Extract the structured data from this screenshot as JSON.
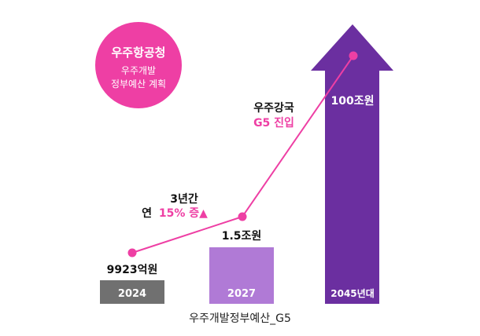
{
  "badge": {
    "title": "우주항공청",
    "line1": "우주개발",
    "line2": "정부예산 계획",
    "color": "#ee3fa4"
  },
  "annotations": {
    "growth_line1": "3년간",
    "growth_line2_prefix": "연",
    "growth_line2_value": "15% 증▲",
    "power_line1": "우주강국",
    "power_line2": "G5 진입"
  },
  "caption": "우주개발정부예산_G5",
  "colors": {
    "accent": "#ee3fa4",
    "bar_2024": "#707070",
    "bar_2027": "#b07ad6",
    "arrow_2045": "#6b2fa0"
  },
  "chart_data": {
    "type": "bar",
    "categories": [
      "2024",
      "2027",
      "2045년대"
    ],
    "values_krw_100m": [
      9923,
      15000,
      1000000
    ],
    "value_labels": [
      "9923억원",
      "1.5조원",
      "100조원"
    ],
    "line_overlay": true,
    "title": "",
    "xlabel": "",
    "ylabel": ""
  }
}
